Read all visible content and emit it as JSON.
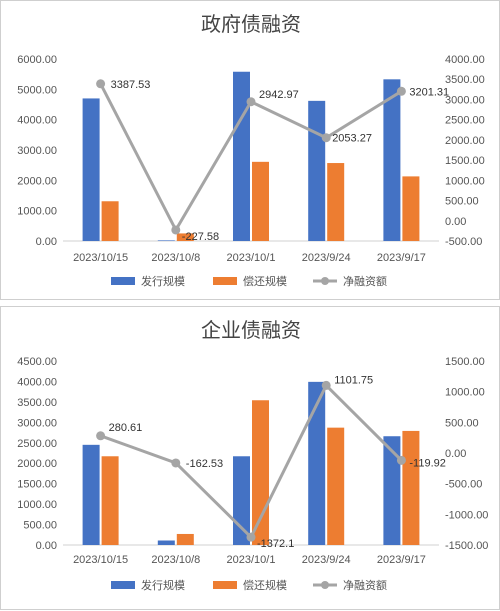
{
  "chart_data": [
    {
      "type": "bar",
      "title": "政府债融资",
      "categories": [
        "2023/10/15",
        "2023/10/8",
        "2023/10/1",
        "2023/9/24",
        "2023/9/17"
      ],
      "series": [
        {
          "name": "发行规模",
          "type": "bar",
          "axis": "left",
          "color": "#4472C4",
          "values": [
            4700,
            20,
            5580,
            4620,
            5330
          ]
        },
        {
          "name": "偿还规模",
          "type": "bar",
          "axis": "left",
          "color": "#ED7D31",
          "values": [
            1310,
            250,
            2610,
            2570,
            2130
          ]
        },
        {
          "name": "净融资额",
          "type": "line",
          "axis": "right",
          "color": "#A5A5A5",
          "values": [
            3387.53,
            -227.58,
            2942.97,
            2053.27,
            3201.31
          ]
        }
      ],
      "data_labels": [
        "3387.53",
        "-227.58",
        "2942.97",
        "2053.27",
        "3201.31"
      ],
      "y_left": {
        "min": 0,
        "max": 6000,
        "step": 1000,
        "ticks": [
          "0.00",
          "1000.00",
          "2000.00",
          "3000.00",
          "4000.00",
          "5000.00",
          "6000.00"
        ]
      },
      "y_right": {
        "min": -500,
        "max": 4000,
        "step": 500,
        "ticks": [
          "-500.00",
          "0.00",
          "500.00",
          "1000.00",
          "1500.00",
          "2000.00",
          "2500.00",
          "3000.00",
          "3500.00",
          "4000.00"
        ]
      },
      "legend": "bottom",
      "grid": false
    },
    {
      "type": "bar",
      "title": "企业债融资",
      "categories": [
        "2023/10/15",
        "2023/10/8",
        "2023/10/1",
        "2023/9/24",
        "2023/9/17"
      ],
      "series": [
        {
          "name": "发行规模",
          "type": "bar",
          "axis": "left",
          "color": "#4472C4",
          "values": [
            2450,
            110,
            2170,
            3990,
            2660
          ]
        },
        {
          "name": "偿还规模",
          "type": "bar",
          "axis": "left",
          "color": "#ED7D31",
          "values": [
            2170,
            270,
            3540,
            2870,
            2790
          ]
        },
        {
          "name": "净融资额",
          "type": "line",
          "axis": "right",
          "color": "#A5A5A5",
          "values": [
            280.61,
            -162.53,
            -1372.1,
            1101.75,
            -119.92
          ]
        }
      ],
      "data_labels": [
        "280.61",
        "-162.53",
        "-1372.1",
        "1101.75",
        "-119.92"
      ],
      "y_left": {
        "min": 0,
        "max": 4500,
        "step": 500,
        "ticks": [
          "0.00",
          "500.00",
          "1000.00",
          "1500.00",
          "2000.00",
          "2500.00",
          "3000.00",
          "3500.00",
          "4000.00",
          "4500.00"
        ]
      },
      "y_right": {
        "min": -1500,
        "max": 1500,
        "step": 500,
        "ticks": [
          "-1500.00",
          "-1000.00",
          "-500.00",
          "0.00",
          "500.00",
          "1000.00",
          "1500.00"
        ]
      },
      "legend": "bottom",
      "grid": false
    }
  ]
}
